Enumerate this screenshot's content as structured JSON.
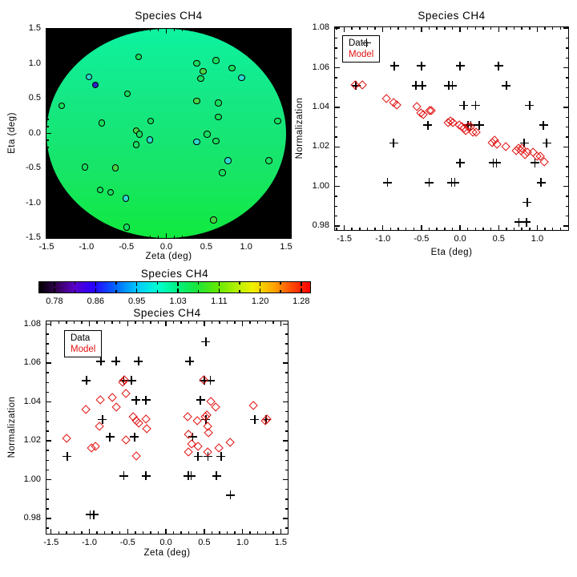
{
  "figure": {
    "background": "#ffffff",
    "text_color": "#000000"
  },
  "colors": {
    "model_red": "#e11212",
    "data_black": "#000000"
  },
  "chart_data": [
    {
      "id": "map",
      "type": "scatter",
      "title": "Species CH4",
      "xlabel": "Zeta (deg)",
      "ylabel": "Eta (deg)",
      "xlim": [
        -1.5,
        1.56
      ],
      "ylim": [
        -1.5,
        1.5
      ],
      "xticks": [
        -1.5,
        -1.0,
        -0.5,
        0.0,
        0.5,
        1.0,
        1.5
      ],
      "xtick_labels": [
        "-1.5",
        "-1.0",
        "-0.5",
        "0.0",
        "0.5",
        "1.0",
        "1.5"
      ],
      "yticks": [
        -1.5,
        -1.0,
        -0.5,
        0.0,
        0.5,
        1.0,
        1.5
      ],
      "ytick_labels": [
        "-1.5",
        "-1.0",
        "-0.5",
        "0.0",
        "0.5",
        "1.0",
        "1.5"
      ],
      "xminor": 0.1,
      "yminor": 0.1,
      "background": "#000000",
      "disk_gradient": [
        "#0df2a0",
        "#15e884",
        "#17e568",
        "#10ea3e"
      ],
      "marker_colors": {
        "g": "#17df5f",
        "g2": "#48d645",
        "c": "#2fd7cf",
        "b": "#2b23c8"
      },
      "points": [
        {
          "x": -0.34,
          "y": 1.09,
          "c": "g"
        },
        {
          "x": 0.39,
          "y": 1.0,
          "c": "g"
        },
        {
          "x": 0.63,
          "y": 1.04,
          "c": "g"
        },
        {
          "x": 0.83,
          "y": 0.93,
          "c": "g"
        },
        {
          "x": 0.95,
          "y": 0.79,
          "c": "c"
        },
        {
          "x": 0.47,
          "y": 0.88,
          "c": "g2"
        },
        {
          "x": 0.44,
          "y": 0.78,
          "c": "g"
        },
        {
          "x": -0.96,
          "y": 0.8,
          "c": "c"
        },
        {
          "x": -0.88,
          "y": 0.69,
          "c": "b"
        },
        {
          "x": -0.48,
          "y": 0.56,
          "c": "g"
        },
        {
          "x": -1.3,
          "y": 0.39,
          "c": "g"
        },
        {
          "x": 0.39,
          "y": 0.46,
          "c": "g2"
        },
        {
          "x": 0.66,
          "y": 0.43,
          "c": "g"
        },
        {
          "x": 0.66,
          "y": 0.23,
          "c": "g"
        },
        {
          "x": -0.8,
          "y": 0.14,
          "c": "g"
        },
        {
          "x": 1.4,
          "y": 0.17,
          "c": "g"
        },
        {
          "x": -0.19,
          "y": 0.17,
          "c": "g"
        },
        {
          "x": -0.37,
          "y": 0.03,
          "c": "g2"
        },
        {
          "x": -0.33,
          "y": -0.02,
          "c": "g"
        },
        {
          "x": -0.2,
          "y": -0.1,
          "c": "c"
        },
        {
          "x": -0.37,
          "y": -0.17,
          "c": "g"
        },
        {
          "x": 0.52,
          "y": -0.02,
          "c": "g"
        },
        {
          "x": 0.39,
          "y": -0.13,
          "c": "c"
        },
        {
          "x": 0.63,
          "y": -0.12,
          "c": "g"
        },
        {
          "x": 0.78,
          "y": -0.4,
          "c": "c"
        },
        {
          "x": 1.29,
          "y": -0.4,
          "c": "g"
        },
        {
          "x": 0.71,
          "y": -0.57,
          "c": "g"
        },
        {
          "x": -1.01,
          "y": -0.49,
          "c": "g"
        },
        {
          "x": -0.63,
          "y": -0.5,
          "c": "g2"
        },
        {
          "x": -0.82,
          "y": -0.82,
          "c": "g"
        },
        {
          "x": -0.69,
          "y": -0.85,
          "c": "g"
        },
        {
          "x": -0.5,
          "y": -0.94,
          "c": "c"
        },
        {
          "x": 0.6,
          "y": -1.25,
          "c": "g2"
        },
        {
          "x": -0.49,
          "y": -1.35,
          "c": "g"
        }
      ]
    },
    {
      "id": "norm_vs_eta",
      "type": "scatter",
      "title": "Species CH4",
      "xlabel": "Eta (deg)",
      "ylabel": "Normalization",
      "xlim": [
        -1.62,
        1.4
      ],
      "ylim": [
        0.978,
        1.0805
      ],
      "xticks": [
        -1.5,
        -1.0,
        -0.5,
        0.0,
        0.5,
        1.0
      ],
      "xtick_labels": [
        "-1.5",
        "-1.0",
        "-0.5",
        "0.0",
        "0.5",
        "1.0"
      ],
      "yticks": [
        0.98,
        1.0,
        1.02,
        1.04,
        1.06,
        1.08
      ],
      "ytick_labels": [
        "0.98",
        "1.00",
        "1.02",
        "1.04",
        "1.06",
        "1.08"
      ],
      "xminor": 0.1,
      "yminor": 0.005,
      "legend": {
        "labels": [
          "Data",
          "Model"
        ],
        "position": "top-left"
      },
      "series": [
        {
          "name": "Data",
          "marker": "plus",
          "color": "#000000",
          "points": [
            [
              -1.35,
              1.051
            ],
            [
              -0.85,
              1.061
            ],
            [
              -0.5,
              1.061
            ],
            [
              0.0,
              1.061
            ],
            [
              0.5,
              1.061
            ],
            [
              -0.57,
              1.051
            ],
            [
              -0.49,
              1.051
            ],
            [
              -0.15,
              1.051
            ],
            [
              -0.1,
              1.051
            ],
            [
              0.6,
              1.051
            ],
            [
              0.05,
              1.041
            ],
            [
              0.2,
              1.041
            ],
            [
              0.9,
              1.041
            ],
            [
              -0.42,
              1.031
            ],
            [
              0.1,
              1.031
            ],
            [
              0.14,
              1.031
            ],
            [
              0.25,
              1.031
            ],
            [
              1.08,
              1.031
            ],
            [
              -0.86,
              1.022
            ],
            [
              0.83,
              1.022
            ],
            [
              1.12,
              1.022
            ],
            [
              0.0,
              1.012
            ],
            [
              0.43,
              1.012
            ],
            [
              0.47,
              1.012
            ],
            [
              0.97,
              1.012
            ],
            [
              -0.94,
              1.002
            ],
            [
              -0.4,
              1.002
            ],
            [
              -0.11,
              1.002
            ],
            [
              -0.07,
              1.002
            ],
            [
              1.05,
              1.002
            ],
            [
              0.87,
              0.992
            ],
            [
              0.76,
              0.982
            ],
            [
              0.86,
              0.982
            ]
          ]
        },
        {
          "name": "Model",
          "marker": "diamond",
          "color": "#e11212",
          "points": [
            [
              -1.35,
              1.051
            ],
            [
              -1.26,
              1.051
            ],
            [
              -0.95,
              1.044
            ],
            [
              -0.86,
              1.042
            ],
            [
              -0.81,
              1.041
            ],
            [
              -0.55,
              1.04
            ],
            [
              -0.5,
              1.037
            ],
            [
              -0.47,
              1.036
            ],
            [
              -0.39,
              1.038
            ],
            [
              -0.37,
              1.038
            ],
            [
              -0.15,
              1.032
            ],
            [
              -0.12,
              1.033
            ],
            [
              -0.09,
              1.032
            ],
            [
              0.0,
              1.031
            ],
            [
              0.03,
              1.03
            ],
            [
              0.06,
              1.029
            ],
            [
              0.08,
              1.028
            ],
            [
              0.11,
              1.03
            ],
            [
              0.14,
              1.03
            ],
            [
              0.17,
              1.027
            ],
            [
              0.21,
              1.027
            ],
            [
              0.42,
              1.022
            ],
            [
              0.45,
              1.023
            ],
            [
              0.48,
              1.021
            ],
            [
              0.6,
              1.02
            ],
            [
              0.73,
              1.018
            ],
            [
              0.76,
              1.019
            ],
            [
              0.79,
              1.018
            ],
            [
              0.81,
              1.019
            ],
            [
              0.85,
              1.016
            ],
            [
              0.88,
              1.017
            ],
            [
              0.95,
              1.017
            ],
            [
              1.0,
              1.015
            ],
            [
              1.04,
              1.015
            ],
            [
              1.1,
              1.012
            ]
          ]
        }
      ]
    },
    {
      "id": "colorbar",
      "type": "colorbar",
      "title": "Species CH4",
      "tick_labels": [
        "0.78",
        "0.86",
        "0.95",
        "1.03",
        "1.11",
        "1.20",
        "1.28"
      ],
      "gradient": [
        [
          "#000000",
          0
        ],
        [
          "#38005c",
          7
        ],
        [
          "#5a00c8",
          13
        ],
        [
          "#2a00ff",
          20
        ],
        [
          "#0064ff",
          28
        ],
        [
          "#00c8ff",
          36
        ],
        [
          "#00ffd0",
          44
        ],
        [
          "#00f080",
          51
        ],
        [
          "#1ae53c",
          58
        ],
        [
          "#64e800",
          66
        ],
        [
          "#aaf000",
          72
        ],
        [
          "#f0f000",
          79
        ],
        [
          "#ffa000",
          87
        ],
        [
          "#ff4c00",
          93
        ],
        [
          "#ff0000",
          100
        ]
      ]
    },
    {
      "id": "norm_vs_zeta",
      "type": "scatter",
      "title": "Species CH4",
      "xlabel": "Zeta (deg)",
      "ylabel": "Normalization",
      "xlim": [
        -1.56,
        1.59
      ],
      "ylim": [
        0.9722,
        1.0815
      ],
      "xticks": [
        -1.5,
        -1.0,
        -0.5,
        0.0,
        0.5,
        1.0,
        1.5
      ],
      "xtick_labels": [
        "-1.5",
        "-1.0",
        "-0.5",
        "0.0",
        "0.5",
        "1.0",
        "1.5"
      ],
      "yticks": [
        0.98,
        1.0,
        1.02,
        1.04,
        1.06,
        1.08
      ],
      "ytick_labels": [
        "0.98",
        "1.00",
        "1.02",
        "1.04",
        "1.06",
        "1.08"
      ],
      "xminor": 0.1,
      "yminor": 0.005,
      "legend": {
        "labels": [
          "Data",
          "Model"
        ],
        "position": "top-left"
      },
      "series": [
        {
          "name": "Data",
          "marker": "plus",
          "color": "#000000",
          "points": [
            [
              0.52,
              1.071
            ],
            [
              -0.85,
              1.061
            ],
            [
              -0.65,
              1.061
            ],
            [
              -0.36,
              1.061
            ],
            [
              0.31,
              1.061
            ],
            [
              -1.04,
              1.051
            ],
            [
              -0.55,
              1.051
            ],
            [
              -0.45,
              1.051
            ],
            [
              0.5,
              1.051
            ],
            [
              0.58,
              1.051
            ],
            [
              -0.39,
              1.041
            ],
            [
              -0.26,
              1.041
            ],
            [
              0.45,
              1.041
            ],
            [
              -0.83,
              1.031
            ],
            [
              0.52,
              1.031
            ],
            [
              1.16,
              1.031
            ],
            [
              1.31,
              1.031
            ],
            [
              -0.73,
              1.022
            ],
            [
              -0.41,
              1.022
            ],
            [
              0.35,
              1.022
            ],
            [
              -1.29,
              1.012
            ],
            [
              0.42,
              1.012
            ],
            [
              0.55,
              1.012
            ],
            [
              0.72,
              1.012
            ],
            [
              -0.55,
              1.002
            ],
            [
              -0.26,
              1.002
            ],
            [
              0.29,
              1.002
            ],
            [
              0.33,
              1.002
            ],
            [
              0.66,
              1.002
            ],
            [
              0.84,
              0.992
            ],
            [
              -0.99,
              0.982
            ],
            [
              -0.94,
              0.982
            ]
          ]
        },
        {
          "name": "Model",
          "marker": "diamond",
          "color": "#e11212",
          "points": [
            [
              -1.29,
              1.021
            ],
            [
              -1.04,
              1.036
            ],
            [
              -0.97,
              1.016
            ],
            [
              -0.92,
              1.017
            ],
            [
              -0.85,
              1.041
            ],
            [
              -0.86,
              1.027
            ],
            [
              -0.7,
              1.042
            ],
            [
              -0.64,
              1.037
            ],
            [
              -0.56,
              1.05
            ],
            [
              -0.54,
              1.051
            ],
            [
              -0.52,
              1.044
            ],
            [
              -0.52,
              1.02
            ],
            [
              -0.42,
              1.032
            ],
            [
              -0.38,
              1.03
            ],
            [
              -0.35,
              1.029
            ],
            [
              -0.38,
              1.012
            ],
            [
              -0.26,
              1.031
            ],
            [
              -0.25,
              1.026
            ],
            [
              0.29,
              1.032
            ],
            [
              0.3,
              1.023
            ],
            [
              0.34,
              1.018
            ],
            [
              0.3,
              1.014
            ],
            [
              0.41,
              1.03
            ],
            [
              0.42,
              1.017
            ],
            [
              0.5,
              1.051
            ],
            [
              0.52,
              1.032
            ],
            [
              0.54,
              1.033
            ],
            [
              0.55,
              1.027
            ],
            [
              0.56,
              1.024
            ],
            [
              0.55,
              1.014
            ],
            [
              0.59,
              1.04
            ],
            [
              0.65,
              1.037
            ],
            [
              0.7,
              1.016
            ],
            [
              0.84,
              1.019
            ],
            [
              1.15,
              1.038
            ],
            [
              1.3,
              1.03
            ],
            [
              1.32,
              1.031
            ]
          ]
        }
      ]
    }
  ]
}
